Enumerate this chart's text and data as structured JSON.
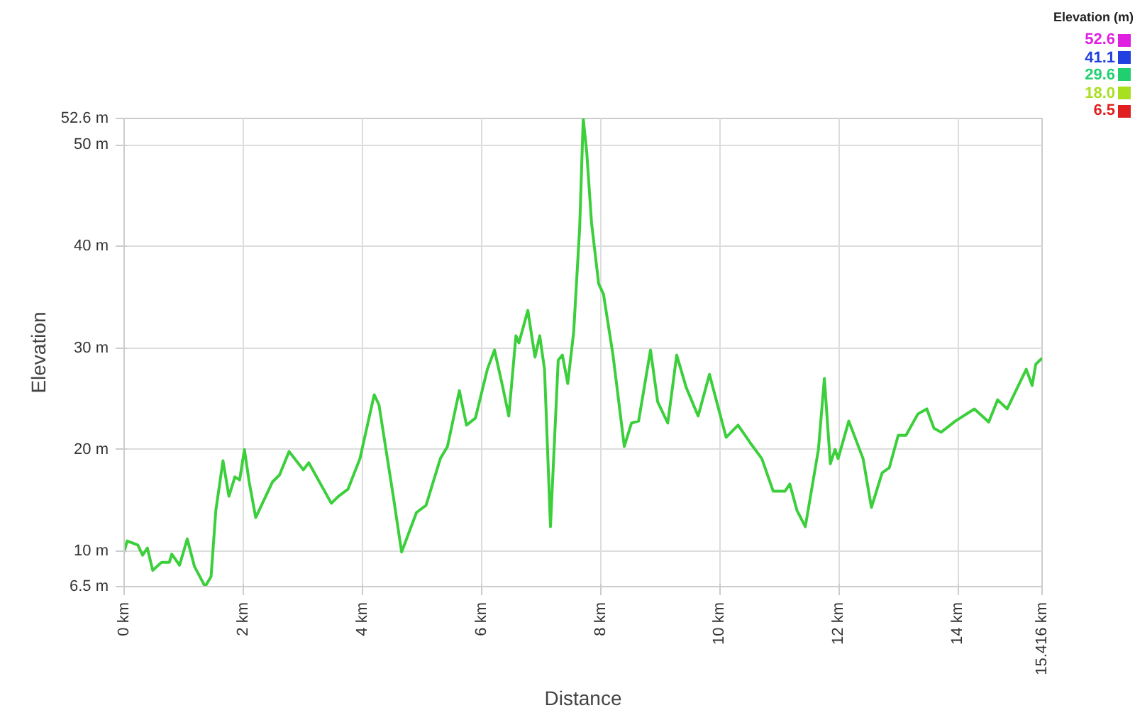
{
  "chart_data": {
    "type": "line",
    "xlabel": "Distance",
    "ylabel": "Elevation",
    "clabel": "Elevation (m)",
    "x": [
      0,
      0.05,
      0.23,
      0.31,
      0.39,
      0.48,
      0.63,
      0.76,
      0.8,
      0.93,
      1.06,
      1.18,
      1.36,
      1.46,
      1.54,
      1.66,
      1.76,
      1.86,
      1.94,
      2.02,
      2.1,
      2.21,
      2.49,
      2.61,
      2.77,
      3.01,
      3.1,
      3.48,
      3.6,
      3.76,
      3.96,
      4.2,
      4.28,
      4.52,
      4.66,
      4.91,
      5.07,
      5.31,
      5.43,
      5.63,
      5.75,
      5.9,
      6.1,
      6.22,
      6.36,
      6.46,
      6.58,
      6.63,
      6.78,
      6.9,
      6.98,
      7.06,
      7.16,
      7.29,
      7.36,
      7.45,
      7.55,
      7.65,
      7.71,
      7.77,
      7.85,
      7.97,
      8.05,
      8.21,
      8.4,
      8.52,
      8.64,
      8.84,
      8.96,
      9.13,
      9.28,
      9.44,
      9.64,
      9.83,
      10.11,
      10.31,
      10.51,
      10.71,
      10.9,
      11.1,
      11.18,
      11.3,
      11.44,
      11.66,
      11.76,
      11.86,
      11.94,
      11.99,
      12.17,
      12.41,
      12.55,
      12.73,
      12.85,
      13.0,
      13.13,
      13.33,
      13.48,
      13.6,
      13.72,
      13.96,
      14.28,
      14.52,
      14.67,
      14.83,
      15.15,
      15.25,
      15.31,
      15.416
    ],
    "series": [
      {
        "color": "#3ccf3c",
        "values": [
          9.9,
          11.0,
          10.6,
          9.6,
          10.3,
          8.1,
          8.9,
          8.9,
          9.7,
          8.6,
          11.2,
          8.5,
          6.5,
          7.5,
          14.0,
          18.9,
          15.4,
          17.3,
          17.0,
          20.0,
          16.8,
          13.3,
          16.8,
          17.5,
          19.8,
          18.0,
          18.7,
          14.7,
          15.4,
          16.1,
          19.1,
          25.4,
          24.4,
          15.4,
          9.9,
          13.8,
          14.5,
          19.1,
          20.3,
          25.8,
          22.4,
          23.1,
          27.9,
          29.8,
          26.1,
          23.3,
          31.2,
          30.5,
          33.7,
          29.1,
          31.2,
          27.9,
          12.4,
          28.8,
          29.3,
          26.5,
          31.6,
          41.8,
          52.6,
          49.2,
          42.3,
          36.3,
          35.3,
          29.3,
          20.3,
          22.6,
          22.8,
          29.8,
          24.7,
          22.6,
          29.3,
          26.1,
          23.3,
          27.4,
          21.2,
          22.4,
          20.7,
          19.1,
          15.9,
          15.9,
          16.6,
          14.0,
          12.4,
          20.0,
          27.0,
          18.6,
          20.0,
          19.1,
          22.8,
          19.1,
          14.3,
          17.7,
          18.2,
          21.4,
          21.4,
          23.5,
          24.0,
          22.1,
          21.7,
          22.8,
          24.0,
          22.7,
          24.9,
          24.0,
          27.9,
          26.3,
          28.4,
          29.0
        ]
      }
    ],
    "xlim": [
      0,
      15.416
    ],
    "xticks": [
      {
        "value": 0,
        "label": "0 km"
      },
      {
        "value": 2,
        "label": "2 km"
      },
      {
        "value": 4,
        "label": "4 km"
      },
      {
        "value": 6,
        "label": "6 km"
      },
      {
        "value": 8,
        "label": "8 km"
      },
      {
        "value": 10,
        "label": "10 km"
      },
      {
        "value": 12,
        "label": "12 km"
      },
      {
        "value": 14,
        "label": "14 km"
      },
      {
        "value": 15.416,
        "label": "15.416 km"
      }
    ],
    "ylim": [
      6.5,
      52.6
    ],
    "yticks": [
      {
        "value": 6.5,
        "label": "6.5 m"
      },
      {
        "value": 10,
        "label": "10 m"
      },
      {
        "value": 20,
        "label": "20 m"
      },
      {
        "value": 30,
        "label": "30 m"
      },
      {
        "value": 40,
        "label": "40 m"
      },
      {
        "value": 50,
        "label": "50 m"
      },
      {
        "value": 52.6,
        "label": "52.6 m"
      }
    ],
    "cticks": [
      {
        "value": 52.6,
        "label": "52.6"
      },
      {
        "value": 41.1,
        "label": "41.1"
      },
      {
        "value": 29.6,
        "label": "29.6"
      },
      {
        "value": 18.0,
        "label": "18.0"
      },
      {
        "value": 6.5,
        "label": "6.5"
      }
    ],
    "colors": [
      "#e020e0",
      "#2040e0",
      "#20d070",
      "#a8e020",
      "#e02020"
    ],
    "grid": true,
    "line_style": "solid"
  }
}
